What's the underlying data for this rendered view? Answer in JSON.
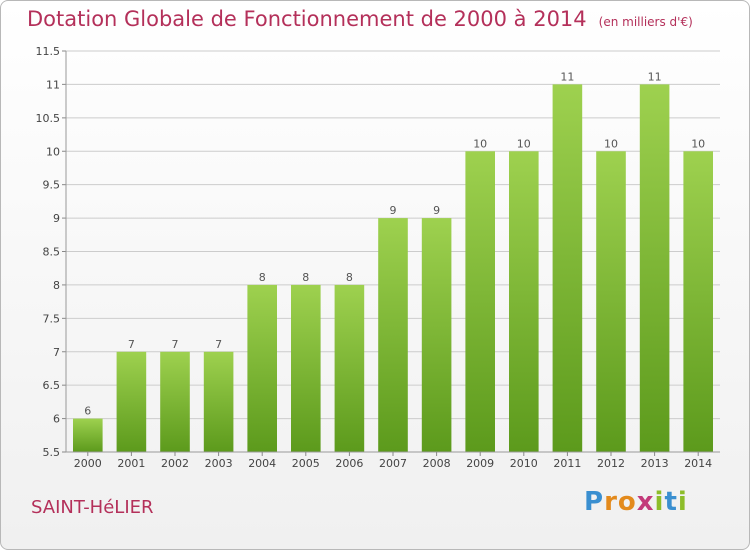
{
  "title": "Dotation Globale de Fonctionnement de 2000 à 2014",
  "subtitle": "(en milliers d'€)",
  "commune": "SAINT-HéLIER",
  "logo": {
    "letters": [
      "P",
      "r",
      "o",
      "x",
      "i",
      "t",
      "i"
    ],
    "colors": [
      "#3a8fd0",
      "#e38a1c",
      "#e38a1c",
      "#c33a7a",
      "#8dbd2a",
      "#3a8fd0",
      "#8dbd2a"
    ]
  },
  "colors": {
    "title": "#b4305a",
    "bar_top": "#9ed14f",
    "bar_bottom": "#5c9a1c",
    "grid": "#cccccc"
  },
  "chart_data": {
    "type": "bar",
    "categories": [
      "2000",
      "2001",
      "2002",
      "2003",
      "2004",
      "2005",
      "2006",
      "2007",
      "2008",
      "2009",
      "2010",
      "2011",
      "2012",
      "2013",
      "2014"
    ],
    "values": [
      6,
      7,
      7,
      7,
      8,
      8,
      8,
      9,
      9,
      10,
      10,
      11,
      10,
      11,
      10
    ],
    "data_labels": [
      "6",
      "7",
      "7",
      "7",
      "8",
      "8",
      "8",
      "9",
      "9",
      "10",
      "10",
      "11",
      "10",
      "11",
      "10"
    ],
    "yticks": [
      "5.5",
      "6",
      "6.5",
      "7",
      "7.5",
      "8",
      "8.5",
      "9",
      "9.5",
      "10",
      "10.5",
      "11",
      "11.5"
    ],
    "ylim": [
      5.5,
      11.5
    ],
    "title": "Dotation Globale de Fonctionnement de 2000 à 2014",
    "subtitle": "(en milliers d'€)",
    "grid": true
  }
}
